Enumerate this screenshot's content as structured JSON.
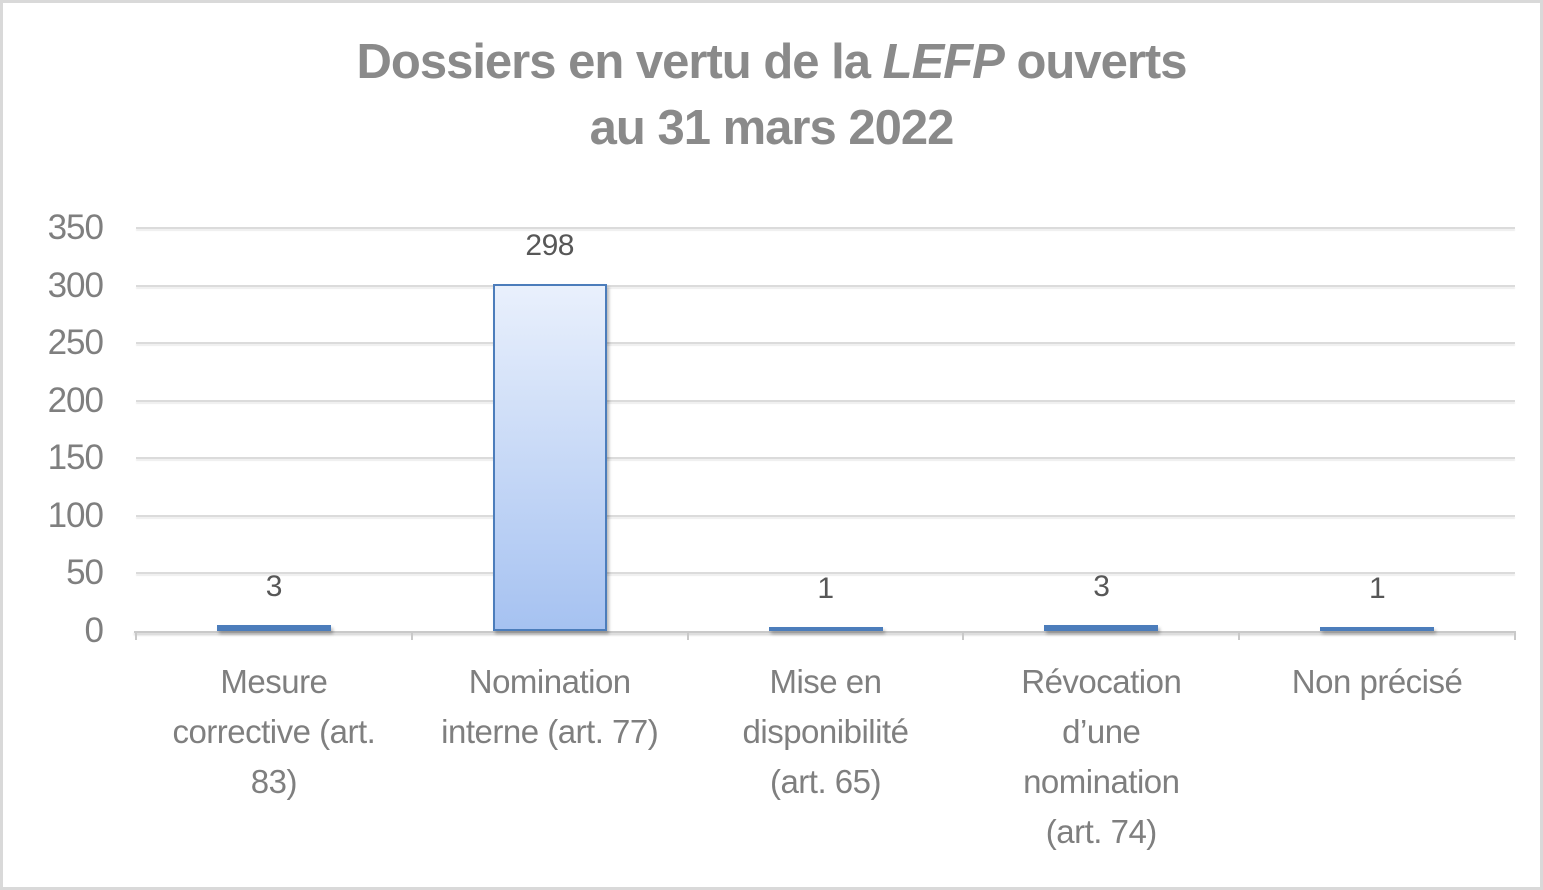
{
  "page": {
    "background": "#ffffff",
    "frame_border": "#d9d9d9"
  },
  "chart_data": {
    "type": "bar",
    "title": {
      "line1_prefix": "Dossiers en vertu de la ",
      "line1_italic": "LEFP",
      "line1_suffix": " ouverts",
      "line2": "au 31 mars 2022"
    },
    "categories": [
      "Mesure corrective (art. 83)",
      "Nomination interne (art. 77)",
      "Mise en disponibilité (art. 65)",
      "Révocation d’une nomination (art. 74)",
      "Non précisé"
    ],
    "category_label_lines": [
      [
        "Mesure",
        "corrective (art.",
        "83)"
      ],
      [
        "Nomination",
        "interne (art. 77)"
      ],
      [
        "Mise en",
        "disponibilité",
        "(art. 65)"
      ],
      [
        "Révocation",
        "d’une",
        "nomination",
        "(art. 74)"
      ],
      [
        "Non précisé"
      ]
    ],
    "values": [
      3,
      298,
      1,
      3,
      1
    ],
    "data_labels": [
      "3",
      "298",
      "1",
      "3",
      "1"
    ],
    "y_ticks": [
      0,
      50,
      100,
      150,
      200,
      250,
      300,
      350
    ],
    "ylim": [
      0,
      350
    ],
    "grid": true,
    "legend": "none",
    "xlabel": "",
    "ylabel": "",
    "colors": {
      "bar_fill_top": "#e9f0fc",
      "bar_fill_bottom": "#a6c2f1",
      "bar_border": "#4c7dbb",
      "gridline": "#dbdbdb",
      "axis_line": "#c9c9c9",
      "title_text": "#8a8a8a",
      "axis_text": "#7f7f7f",
      "data_label_text": "#575757"
    }
  }
}
